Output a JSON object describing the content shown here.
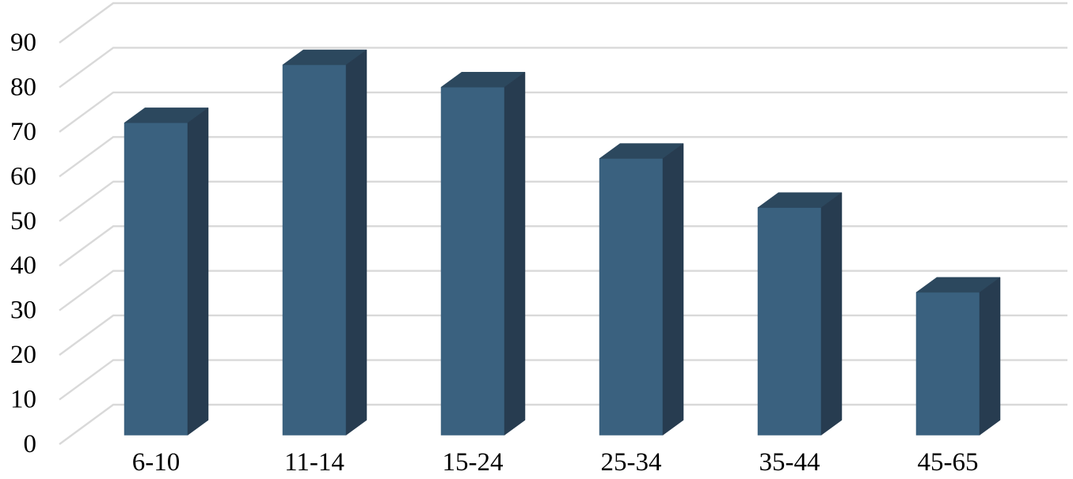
{
  "chart_data": {
    "type": "bar",
    "variant": "3d-column",
    "title": "",
    "xlabel": "",
    "ylabel": "",
    "categories": [
      "6-10",
      "11-14",
      "15-24",
      "25-34",
      "35-44",
      "45-65"
    ],
    "values": [
      70,
      83,
      78,
      62,
      51,
      32
    ],
    "yticks": [
      0,
      10,
      20,
      30,
      40,
      50,
      60,
      70,
      80,
      90
    ],
    "ylim": [
      0,
      90
    ],
    "grid": true,
    "legend": false,
    "colors": {
      "bar_front": "#3a617f",
      "bar_top": "#2c485e",
      "bar_side": "#273c50",
      "gridline": "#d9d9d9",
      "tick_text": "#000000",
      "background": "#ffffff"
    }
  }
}
